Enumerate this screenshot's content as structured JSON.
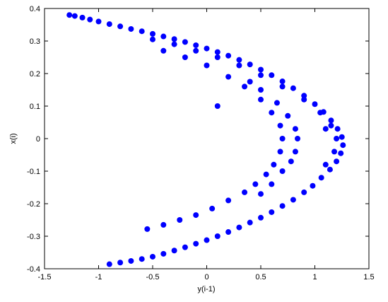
{
  "chart_data": {
    "type": "scatter",
    "color": "#0000ff",
    "xlabel": "y(i-1)",
    "ylabel": "x(i)",
    "xlim": [
      -1.5,
      1.5
    ],
    "ylim": [
      -0.4,
      0.4
    ],
    "xticks": [
      -1.5,
      -1,
      -0.5,
      0,
      0.5,
      1,
      1.5
    ],
    "yticks": [
      -0.4,
      -0.3,
      -0.2,
      -0.1,
      0,
      0.1,
      0.2,
      0.3,
      0.4
    ],
    "x": [
      -1.27,
      -1.22,
      -1.15,
      -1.08,
      -1.0,
      -0.9,
      -0.8,
      -0.7,
      -0.6,
      -0.5,
      -0.4,
      -0.3,
      -0.2,
      -0.1,
      0,
      0.1,
      0.2,
      0.3,
      0.4,
      0.5,
      0.6,
      0.7,
      0.8,
      0.9,
      1.0,
      1.08,
      1.15,
      1.21,
      1.25,
      1.26,
      1.24,
      1.2,
      1.14,
      1.06,
      0.98,
      0.9,
      0.8,
      0.7,
      0.6,
      0.5,
      0.4,
      0.3,
      0.2,
      0.1,
      0,
      -0.1,
      -0.2,
      -0.3,
      -0.4,
      -0.5,
      -0.6,
      -0.7,
      -0.8,
      -0.9,
      -0.5,
      -0.3,
      -0.1,
      0.1,
      0.3,
      0.5,
      0.7,
      0.9,
      1.05,
      1.15,
      1.2,
      1.18,
      1.1,
      -0.4,
      -0.2,
      0,
      0.2,
      0.35,
      0.5,
      0.6,
      0.68,
      0.7,
      0.68,
      0.62,
      0.55,
      0.45,
      0.35,
      0.2,
      0.05,
      -0.1,
      -0.25,
      -0.4,
      -0.55,
      0.4,
      0.5,
      0.65,
      0.75,
      0.82,
      0.84,
      0.82,
      0.78,
      0.7,
      0.6,
      0.5,
      0.1,
      1.1
    ],
    "values": [
      0.38,
      0.377,
      0.372,
      0.366,
      0.36,
      0.352,
      0.345,
      0.337,
      0.33,
      0.322,
      0.314,
      0.306,
      0.297,
      0.287,
      0.277,
      0.266,
      0.255,
      0.242,
      0.228,
      0.212,
      0.195,
      0.176,
      0.155,
      0.132,
      0.106,
      0.082,
      0.056,
      0.03,
      0.005,
      -0.02,
      -0.045,
      -0.07,
      -0.095,
      -0.12,
      -0.145,
      -0.165,
      -0.188,
      -0.207,
      -0.226,
      -0.243,
      -0.258,
      -0.273,
      -0.287,
      -0.3,
      -0.312,
      -0.323,
      -0.334,
      -0.344,
      -0.354,
      -0.363,
      -0.37,
      -0.376,
      -0.381,
      -0.386,
      0.305,
      0.29,
      0.27,
      0.25,
      0.225,
      0.195,
      0.16,
      0.12,
      0.08,
      0.04,
      0.0,
      -0.04,
      -0.08,
      0.27,
      0.25,
      0.225,
      0.19,
      0.16,
      0.12,
      0.08,
      0.04,
      0.0,
      -0.04,
      -0.08,
      -0.11,
      -0.14,
      -0.165,
      -0.19,
      -0.215,
      -0.235,
      -0.25,
      -0.265,
      -0.278,
      0.175,
      0.15,
      0.11,
      0.07,
      0.03,
      0,
      -0.04,
      -0.07,
      -0.1,
      -0.14,
      -0.17,
      0.1,
      0.03
    ]
  }
}
